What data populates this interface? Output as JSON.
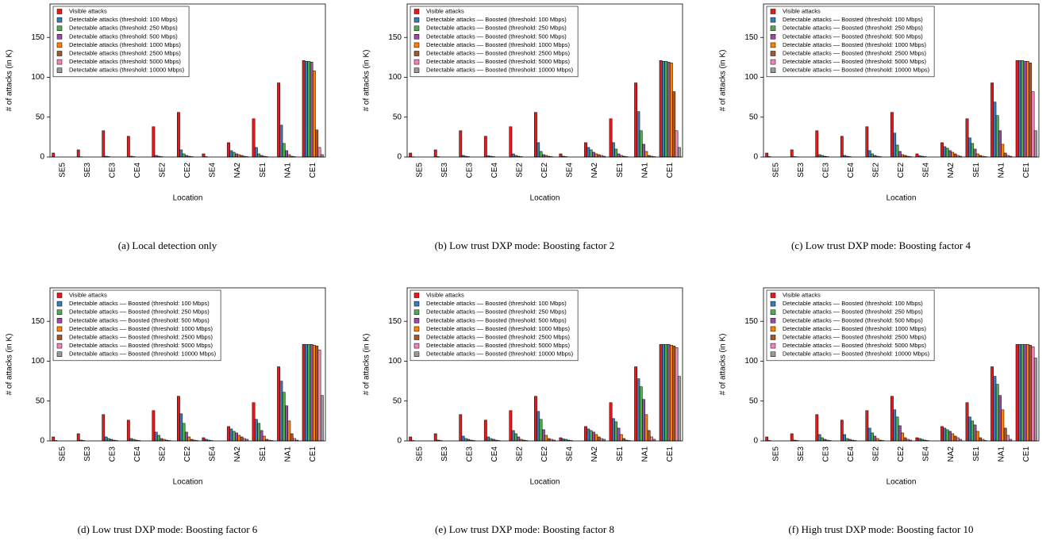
{
  "chart_data": [
    {
      "type": "bar",
      "title": "(a)  Local detection only",
      "xlabel": "Location",
      "ylabel": "# of attacks (in K)",
      "categories": [
        "SE5",
        "SE3",
        "CE3",
        "CE4",
        "SE2",
        "CE2",
        "SE4",
        "NA2",
        "SE1",
        "NA1",
        "CE1"
      ],
      "ylim": [
        0,
        192
      ],
      "yticks": [
        0,
        50,
        100,
        150
      ],
      "grid": false,
      "legend": "upper left",
      "series": [
        {
          "name": "Visible attacks",
          "color": "#e41a1c",
          "values": [
            5,
            9,
            33,
            26,
            38,
            56,
            4,
            18,
            48,
            93,
            121
          ]
        },
        {
          "name": "Detectable attacks (threshold: 100 Mbps)",
          "color": "#377eb8",
          "values": [
            0,
            0.3,
            1,
            1,
            2,
            9,
            0.5,
            8,
            12,
            40,
            120
          ]
        },
        {
          "name": "Detectable attacks (threshold: 250 Mbps)",
          "color": "#4daf4a",
          "values": [
            0,
            0,
            0.5,
            0.5,
            1,
            4,
            0,
            6,
            4,
            17,
            120
          ]
        },
        {
          "name": "Detectable attacks (threshold: 500 Mbps)",
          "color": "#984ea3",
          "values": [
            0,
            0,
            0,
            0,
            0.5,
            2,
            0,
            4,
            2,
            8,
            119
          ]
        },
        {
          "name": "Detectable attacks (threshold: 1000 Mbps)",
          "color": "#ff7f00",
          "values": [
            0,
            0,
            0,
            0,
            0,
            1,
            0,
            3,
            1,
            3,
            108
          ]
        },
        {
          "name": "Detectable attacks (threshold: 2500 Mbps)",
          "color": "#a65628",
          "values": [
            0,
            0,
            0,
            0,
            0,
            0.5,
            0,
            2,
            0.5,
            1,
            34
          ]
        },
        {
          "name": "Detectable attacks (threshold: 5000 Mbps)",
          "color": "#f781bf",
          "values": [
            0,
            0,
            0,
            0,
            0,
            0,
            0,
            1,
            0,
            0.5,
            12
          ]
        },
        {
          "name": "Detectable attacks (threshold: 10000 Mbps)",
          "color": "#999999",
          "values": [
            0,
            0,
            0,
            0,
            0,
            0,
            0,
            0.5,
            0,
            0,
            3
          ]
        }
      ]
    },
    {
      "type": "bar",
      "title": "(b)  Low trust DXP mode: Boosting factor 2",
      "xlabel": "Location",
      "ylabel": "# of attacks (in K)",
      "categories": [
        "SE5",
        "SE3",
        "CE3",
        "CE4",
        "SE2",
        "CE2",
        "SE4",
        "NA2",
        "SE1",
        "NA1",
        "CE1"
      ],
      "ylim": [
        0,
        192
      ],
      "yticks": [
        0,
        50,
        100,
        150
      ],
      "grid": false,
      "legend": "upper left",
      "series": [
        {
          "name": "Visible attacks",
          "color": "#e41a1c",
          "values": [
            5,
            9,
            33,
            26,
            38,
            56,
            4,
            18,
            48,
            93,
            121
          ]
        },
        {
          "name": "Detectable attacks –– Boosted (threshold: 100 Mbps)",
          "color": "#377eb8",
          "values": [
            0.3,
            0.5,
            2,
            1.5,
            4,
            18,
            1,
            12,
            18,
            57,
            120
          ]
        },
        {
          "name": "Detectable attacks –– Boosted (threshold: 250 Mbps)",
          "color": "#4daf4a",
          "values": [
            0,
            0,
            1,
            1,
            2,
            7,
            0.5,
            9,
            10,
            33,
            120
          ]
        },
        {
          "name": "Detectable attacks –– Boosted (threshold: 500 Mbps)",
          "color": "#984ea3",
          "values": [
            0,
            0,
            0.5,
            0.5,
            1,
            3,
            0,
            6,
            4,
            16,
            119
          ]
        },
        {
          "name": "Detectable attacks –– Boosted (threshold: 1000 Mbps)",
          "color": "#ff7f00",
          "values": [
            0,
            0,
            0,
            0,
            0.5,
            2,
            0,
            4,
            2,
            7,
            118
          ]
        },
        {
          "name": "Detectable attacks –– Boosted (threshold: 2500 Mbps)",
          "color": "#a65628",
          "values": [
            0,
            0,
            0,
            0,
            0,
            1,
            0,
            3,
            1,
            2,
            82
          ]
        },
        {
          "name": "Detectable attacks –– Boosted (threshold: 5000 Mbps)",
          "color": "#f781bf",
          "values": [
            0,
            0,
            0,
            0,
            0,
            0.5,
            0,
            2,
            0.5,
            1,
            33
          ]
        },
        {
          "name": "Detectable attacks –– Boosted (threshold: 10000 Mbps)",
          "color": "#999999",
          "values": [
            0,
            0,
            0,
            0,
            0,
            0,
            0,
            1,
            0,
            0.5,
            12
          ]
        }
      ]
    },
    {
      "type": "bar",
      "title": "(c)  Low trust DXP mode: Boosting factor 4",
      "xlabel": "Location",
      "ylabel": "# of attacks (in K)",
      "categories": [
        "SE5",
        "SE3",
        "CE3",
        "CE4",
        "SE2",
        "CE2",
        "SE4",
        "NA2",
        "SE1",
        "NA1",
        "CE1"
      ],
      "ylim": [
        0,
        192
      ],
      "yticks": [
        0,
        50,
        100,
        150
      ],
      "grid": false,
      "legend": "upper left",
      "series": [
        {
          "name": "Visible attacks",
          "color": "#e41a1c",
          "values": [
            5,
            9,
            33,
            26,
            38,
            56,
            4,
            18,
            48,
            93,
            121
          ]
        },
        {
          "name": "Detectable attacks –– Boosted (threshold: 100 Mbps)",
          "color": "#377eb8",
          "values": [
            0.5,
            0.5,
            3,
            2,
            8,
            30,
            1.5,
            13,
            24,
            69,
            121
          ]
        },
        {
          "name": "Detectable attacks –– Boosted (threshold: 250 Mbps)",
          "color": "#4daf4a",
          "values": [
            0,
            0.3,
            2,
            1,
            4,
            15,
            1,
            11,
            17,
            52,
            121
          ]
        },
        {
          "name": "Detectable attacks –– Boosted (threshold: 500 Mbps)",
          "color": "#984ea3",
          "values": [
            0,
            0,
            1,
            0.5,
            2,
            7,
            0.5,
            8,
            10,
            33,
            120
          ]
        },
        {
          "name": "Detectable attacks –– Boosted (threshold: 1000 Mbps)",
          "color": "#ff7f00",
          "values": [
            0,
            0,
            0.5,
            0,
            1,
            3,
            0,
            6,
            4,
            16,
            120
          ]
        },
        {
          "name": "Detectable attacks –– Boosted (threshold: 2500 Mbps)",
          "color": "#a65628",
          "values": [
            0,
            0,
            0,
            0,
            0.5,
            2,
            0,
            4,
            2,
            5,
            118
          ]
        },
        {
          "name": "Detectable attacks –– Boosted (threshold: 5000 Mbps)",
          "color": "#f781bf",
          "values": [
            0,
            0,
            0,
            0,
            0,
            1,
            0,
            2,
            1,
            2,
            82
          ]
        },
        {
          "name": "Detectable attacks –– Boosted (threshold: 10000 Mbps)",
          "color": "#999999",
          "values": [
            0,
            0,
            0,
            0,
            0,
            0.5,
            0,
            1,
            0.5,
            1,
            33
          ]
        }
      ]
    },
    {
      "type": "bar",
      "title": "(d)  Low trust DXP mode: Boosting factor 6",
      "xlabel": "Location",
      "ylabel": "# of attacks (in K)",
      "categories": [
        "SE5",
        "SE3",
        "CE3",
        "CE4",
        "SE2",
        "CE2",
        "SE4",
        "NA2",
        "SE1",
        "NA1",
        "CE1"
      ],
      "ylim": [
        0,
        192
      ],
      "yticks": [
        0,
        50,
        100,
        150
      ],
      "grid": false,
      "legend": "upper left",
      "series": [
        {
          "name": "Visible attacks",
          "color": "#e41a1c",
          "values": [
            5,
            9,
            33,
            26,
            38,
            56,
            4,
            18,
            48,
            93,
            121
          ]
        },
        {
          "name": "Detectable attacks –– Boosted (threshold: 100 Mbps)",
          "color": "#377eb8",
          "values": [
            0.5,
            1,
            5,
            3,
            11,
            34,
            2,
            15,
            27,
            75,
            121
          ]
        },
        {
          "name": "Detectable attacks –– Boosted (threshold: 250 Mbps)",
          "color": "#4daf4a",
          "values": [
            0,
            0.5,
            3,
            2,
            7,
            22,
            1,
            12,
            22,
            61,
            121
          ]
        },
        {
          "name": "Detectable attacks –– Boosted (threshold: 500 Mbps)",
          "color": "#984ea3",
          "values": [
            0,
            0,
            2,
            1,
            3,
            11,
            0.5,
            10,
            13,
            44,
            121
          ]
        },
        {
          "name": "Detectable attacks –– Boosted (threshold: 1000 Mbps)",
          "color": "#ff7f00",
          "values": [
            0,
            0,
            1,
            0.5,
            2,
            5,
            0,
            7,
            6,
            25,
            120
          ]
        },
        {
          "name": "Detectable attacks –– Boosted (threshold: 2500 Mbps)",
          "color": "#a65628",
          "values": [
            0,
            0,
            0.5,
            0,
            1,
            2,
            0,
            5,
            2,
            9,
            119
          ]
        },
        {
          "name": "Detectable attacks –– Boosted (threshold: 5000 Mbps)",
          "color": "#f781bf",
          "values": [
            0,
            0,
            0,
            0,
            0.5,
            1,
            0,
            3,
            1,
            3,
            114
          ]
        },
        {
          "name": "Detectable attacks –– Boosted (threshold: 10000 Mbps)",
          "color": "#999999",
          "values": [
            0,
            0,
            0,
            0,
            0,
            0.5,
            0,
            2,
            0.5,
            1,
            57
          ]
        }
      ]
    },
    {
      "type": "bar",
      "title": "(e)  Low trust DXP mode: Boosting factor 8",
      "xlabel": "Location",
      "ylabel": "# of attacks (in K)",
      "categories": [
        "SE5",
        "SE3",
        "CE3",
        "CE4",
        "SE2",
        "CE2",
        "SE4",
        "NA2",
        "SE1",
        "NA1",
        "CE1"
      ],
      "ylim": [
        0,
        192
      ],
      "yticks": [
        0,
        50,
        100,
        150
      ],
      "grid": false,
      "legend": "upper left",
      "series": [
        {
          "name": "Visible attacks",
          "color": "#e41a1c",
          "values": [
            5,
            9,
            33,
            26,
            38,
            56,
            4,
            18,
            48,
            93,
            121
          ]
        },
        {
          "name": "Detectable attacks –– Boosted (threshold: 100 Mbps)",
          "color": "#377eb8",
          "values": [
            0.5,
            1,
            6,
            5,
            13,
            37,
            2.5,
            15,
            28,
            78,
            121
          ]
        },
        {
          "name": "Detectable attacks –– Boosted (threshold: 250 Mbps)",
          "color": "#4daf4a",
          "values": [
            0,
            0.5,
            3,
            3,
            9,
            27,
            2,
            13,
            24,
            68,
            121
          ]
        },
        {
          "name": "Detectable attacks –– Boosted (threshold: 500 Mbps)",
          "color": "#984ea3",
          "values": [
            0,
            0,
            2,
            2,
            5,
            14,
            1,
            11,
            16,
            52,
            121
          ]
        },
        {
          "name": "Detectable attacks –– Boosted (threshold: 1000 Mbps)",
          "color": "#ff7f00",
          "values": [
            0,
            0,
            1,
            1,
            2,
            7,
            0.5,
            8,
            8,
            33,
            120
          ]
        },
        {
          "name": "Detectable attacks –– Boosted (threshold: 2500 Mbps)",
          "color": "#a65628",
          "values": [
            0,
            0,
            0.5,
            0.5,
            1,
            3,
            0,
            5,
            3,
            13,
            119
          ]
        },
        {
          "name": "Detectable attacks –– Boosted (threshold: 5000 Mbps)",
          "color": "#f781bf",
          "values": [
            0,
            0,
            0,
            0,
            0.5,
            2,
            0,
            3,
            1,
            5,
            117
          ]
        },
        {
          "name": "Detectable attacks –– Boosted (threshold: 10000 Mbps)",
          "color": "#999999",
          "values": [
            0,
            0,
            0,
            0,
            0,
            1,
            0,
            2,
            0.5,
            2,
            81
          ]
        }
      ]
    },
    {
      "type": "bar",
      "title": "(f)  High trust DXP mode: Boosting factor 10",
      "xlabel": "Location",
      "ylabel": "# of attacks (in K)",
      "categories": [
        "SE5",
        "SE3",
        "CE3",
        "CE4",
        "SE2",
        "CE2",
        "SE4",
        "NA2",
        "SE1",
        "NA1",
        "CE1"
      ],
      "ylim": [
        0,
        192
      ],
      "yticks": [
        0,
        50,
        100,
        150
      ],
      "grid": false,
      "legend": "upper left",
      "series": [
        {
          "name": "Visible attacks",
          "color": "#e41a1c",
          "values": [
            5,
            9,
            33,
            26,
            38,
            56,
            4,
            18,
            48,
            93,
            121
          ]
        },
        {
          "name": "Detectable attacks –– Boosted (threshold: 100 Mbps)",
          "color": "#377eb8",
          "values": [
            0.5,
            1,
            8,
            8,
            16,
            39,
            3,
            16,
            30,
            81,
            121
          ]
        },
        {
          "name": "Detectable attacks –– Boosted (threshold: 250 Mbps)",
          "color": "#4daf4a",
          "values": [
            0,
            0.5,
            4,
            3,
            10,
            30,
            2,
            14,
            25,
            71,
            121
          ]
        },
        {
          "name": "Detectable attacks –– Boosted (threshold: 500 Mbps)",
          "color": "#984ea3",
          "values": [
            0,
            0,
            2,
            2,
            6,
            19,
            1,
            12,
            20,
            57,
            121
          ]
        },
        {
          "name": "Detectable attacks –– Boosted (threshold: 1000 Mbps)",
          "color": "#ff7f00",
          "values": [
            0,
            0,
            1,
            1,
            3,
            10,
            0.5,
            9,
            12,
            39,
            121
          ]
        },
        {
          "name": "Detectable attacks –– Boosted (threshold: 2500 Mbps)",
          "color": "#a65628",
          "values": [
            0,
            0,
            0.5,
            0.5,
            1,
            4,
            0,
            6,
            4,
            16,
            120
          ]
        },
        {
          "name": "Detectable attacks –– Boosted (threshold: 5000 Mbps)",
          "color": "#f781bf",
          "values": [
            0,
            0,
            0,
            0,
            0.5,
            2,
            0,
            4,
            2,
            7,
            118
          ]
        },
        {
          "name": "Detectable attacks –– Boosted (threshold: 10000 Mbps)",
          "color": "#999999",
          "values": [
            0,
            0,
            0,
            0,
            0,
            1,
            0,
            2,
            0.5,
            2,
            104
          ]
        }
      ]
    }
  ]
}
